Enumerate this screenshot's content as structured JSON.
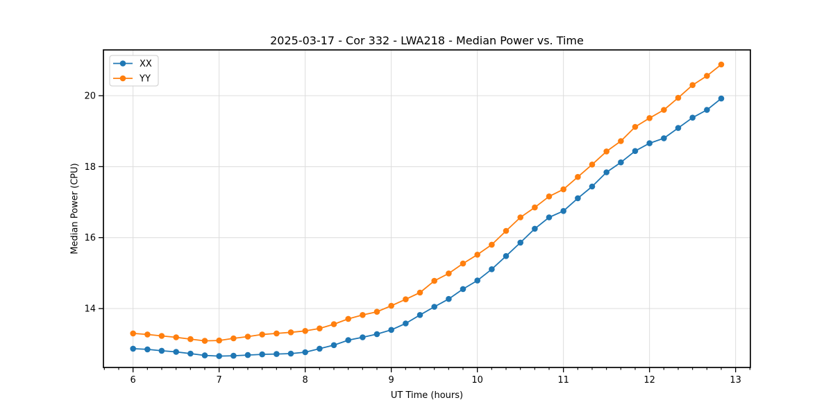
{
  "figure": {
    "title": "2025-03-17 - Cor 332 - LWA218 - Median Power vs. Time",
    "xlabel": "UT Time (hours)",
    "ylabel": "Median Power (CPU)"
  },
  "chart_data": {
    "type": "line",
    "title": "2025-03-17 - Cor 332 - LWA218 - Median Power vs. Time",
    "xlabel": "UT Time (hours)",
    "ylabel": "Median Power (CPU)",
    "x": [
      6.0,
      6.167,
      6.333,
      6.5,
      6.667,
      6.833,
      7.0,
      7.167,
      7.333,
      7.5,
      7.667,
      7.833,
      8.0,
      8.167,
      8.333,
      8.5,
      8.667,
      8.833,
      9.0,
      9.167,
      9.333,
      9.5,
      9.667,
      9.833,
      10.0,
      10.167,
      10.333,
      10.5,
      10.667,
      10.833,
      11.0,
      11.167,
      11.333,
      11.5,
      11.667,
      11.833,
      12.0,
      12.167,
      12.333,
      12.5,
      12.667,
      12.833
    ],
    "series": [
      {
        "name": "XX",
        "color": "#1f77b4",
        "values": [
          12.87,
          12.85,
          12.81,
          12.78,
          12.73,
          12.68,
          12.66,
          12.67,
          12.69,
          12.71,
          12.72,
          12.73,
          12.77,
          12.87,
          12.97,
          13.11,
          13.19,
          13.28,
          13.4,
          13.58,
          13.82,
          14.05,
          14.27,
          14.55,
          14.79,
          15.11,
          15.48,
          15.86,
          16.25,
          16.57,
          16.75,
          17.11,
          17.44,
          17.84,
          18.12,
          18.44,
          18.66,
          18.8,
          19.09,
          19.38,
          19.6,
          19.92
        ]
      },
      {
        "name": "YY",
        "color": "#ff7f0e",
        "values": [
          13.3,
          13.27,
          13.23,
          13.19,
          13.14,
          13.09,
          13.1,
          13.16,
          13.21,
          13.27,
          13.3,
          13.33,
          13.37,
          13.44,
          13.56,
          13.71,
          13.82,
          13.91,
          14.08,
          14.26,
          14.45,
          14.78,
          14.99,
          15.27,
          15.52,
          15.8,
          16.19,
          16.57,
          16.85,
          17.16,
          17.36,
          17.71,
          18.06,
          18.43,
          18.72,
          19.12,
          19.37,
          19.6,
          19.94,
          20.3,
          20.56,
          20.88
        ]
      }
    ],
    "xlim": [
      5.656,
      13.172
    ],
    "ylim": [
      12.34,
      21.29
    ],
    "x_major_ticks": [
      6,
      7,
      8,
      9,
      10,
      11,
      12,
      13
    ],
    "y_major_ticks": [
      14,
      16,
      18,
      20
    ],
    "x_minor_ticks_per_hour": 6,
    "grid": "major",
    "grid_color": "#dcdcdc",
    "spine_color": "#000000",
    "legend": {
      "position": "upper-left",
      "entries": [
        "XX",
        "YY"
      ]
    },
    "marker": "circle",
    "marker_size": 4.3,
    "line_width": 1.8
  }
}
